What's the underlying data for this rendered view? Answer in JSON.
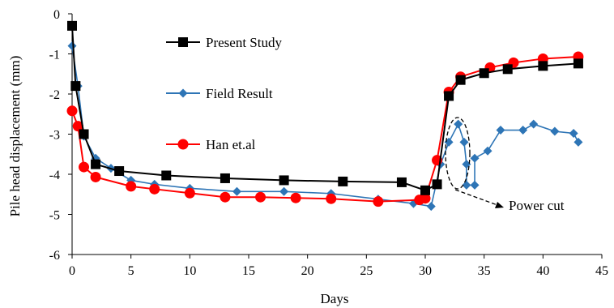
{
  "chart_data": {
    "type": "line",
    "title": "",
    "xlabel": "Days",
    "ylabel": "Pile head displacement (mm)",
    "xlim": [
      0,
      45
    ],
    "ylim": [
      -6,
      0
    ],
    "x_ticks": [
      "0",
      "5",
      "10",
      "15",
      "20",
      "25",
      "30",
      "35",
      "40",
      "45"
    ],
    "y_ticks": [
      "0",
      "-1",
      "-2",
      "-3",
      "-4",
      "-5",
      "-6"
    ],
    "grid": false,
    "legend_position": "inside-top-left",
    "series": [
      {
        "name": "Present Study",
        "color": "#000000",
        "marker": "square",
        "points": [
          [
            0,
            -0.3
          ],
          [
            0.3,
            -1.8
          ],
          [
            1,
            -3.0
          ],
          [
            2,
            -3.75
          ],
          [
            4,
            -3.92
          ],
          [
            8,
            -4.03
          ],
          [
            13,
            -4.1
          ],
          [
            18,
            -4.15
          ],
          [
            23,
            -4.18
          ],
          [
            28,
            -4.2
          ],
          [
            30,
            -4.4
          ],
          [
            31,
            -4.25
          ],
          [
            32,
            -2.05
          ],
          [
            33,
            -1.65
          ],
          [
            35,
            -1.48
          ],
          [
            37,
            -1.38
          ],
          [
            40,
            -1.3
          ],
          [
            43,
            -1.24
          ]
        ]
      },
      {
        "name": "Field Result",
        "color": "#2E75B6",
        "marker": "diamond",
        "points": [
          [
            0,
            -0.8
          ],
          [
            0.5,
            -1.8
          ],
          [
            1,
            -3.05
          ],
          [
            2,
            -3.6
          ],
          [
            3.3,
            -3.85
          ],
          [
            5,
            -4.15
          ],
          [
            7,
            -4.25
          ],
          [
            10,
            -4.35
          ],
          [
            14,
            -4.43
          ],
          [
            18,
            -4.43
          ],
          [
            22,
            -4.48
          ],
          [
            26,
            -4.62
          ],
          [
            29,
            -4.73
          ],
          [
            30.5,
            -4.8
          ],
          [
            31.3,
            -3.75
          ],
          [
            32,
            -3.2
          ],
          [
            32.8,
            -2.75
          ],
          [
            33.3,
            -3.2
          ],
          [
            33.5,
            -3.75
          ],
          [
            33.5,
            -4.27
          ],
          [
            34.2,
            -4.27
          ],
          [
            34.2,
            -3.6
          ],
          [
            35.3,
            -3.42
          ],
          [
            36.4,
            -2.9
          ],
          [
            38.3,
            -2.9
          ],
          [
            39.2,
            -2.75
          ],
          [
            41,
            -2.93
          ],
          [
            42.6,
            -2.98
          ],
          [
            43,
            -3.2
          ]
        ]
      },
      {
        "name": "Han et.al",
        "color": "#FF0000",
        "marker": "circle",
        "points": [
          [
            0,
            -2.42
          ],
          [
            0.5,
            -2.8
          ],
          [
            1,
            -3.82
          ],
          [
            2,
            -4.07
          ],
          [
            5,
            -4.3
          ],
          [
            7,
            -4.37
          ],
          [
            10,
            -4.47
          ],
          [
            13,
            -4.57
          ],
          [
            16,
            -4.57
          ],
          [
            19,
            -4.59
          ],
          [
            22,
            -4.61
          ],
          [
            26,
            -4.68
          ],
          [
            29.5,
            -4.64
          ],
          [
            30,
            -4.6
          ],
          [
            31,
            -3.65
          ],
          [
            32,
            -1.95
          ],
          [
            33,
            -1.57
          ],
          [
            35.5,
            -1.34
          ],
          [
            37.5,
            -1.22
          ],
          [
            40,
            -1.12
          ],
          [
            43,
            -1.07
          ]
        ]
      }
    ],
    "annotations": [
      {
        "text": "Power cut"
      }
    ]
  }
}
